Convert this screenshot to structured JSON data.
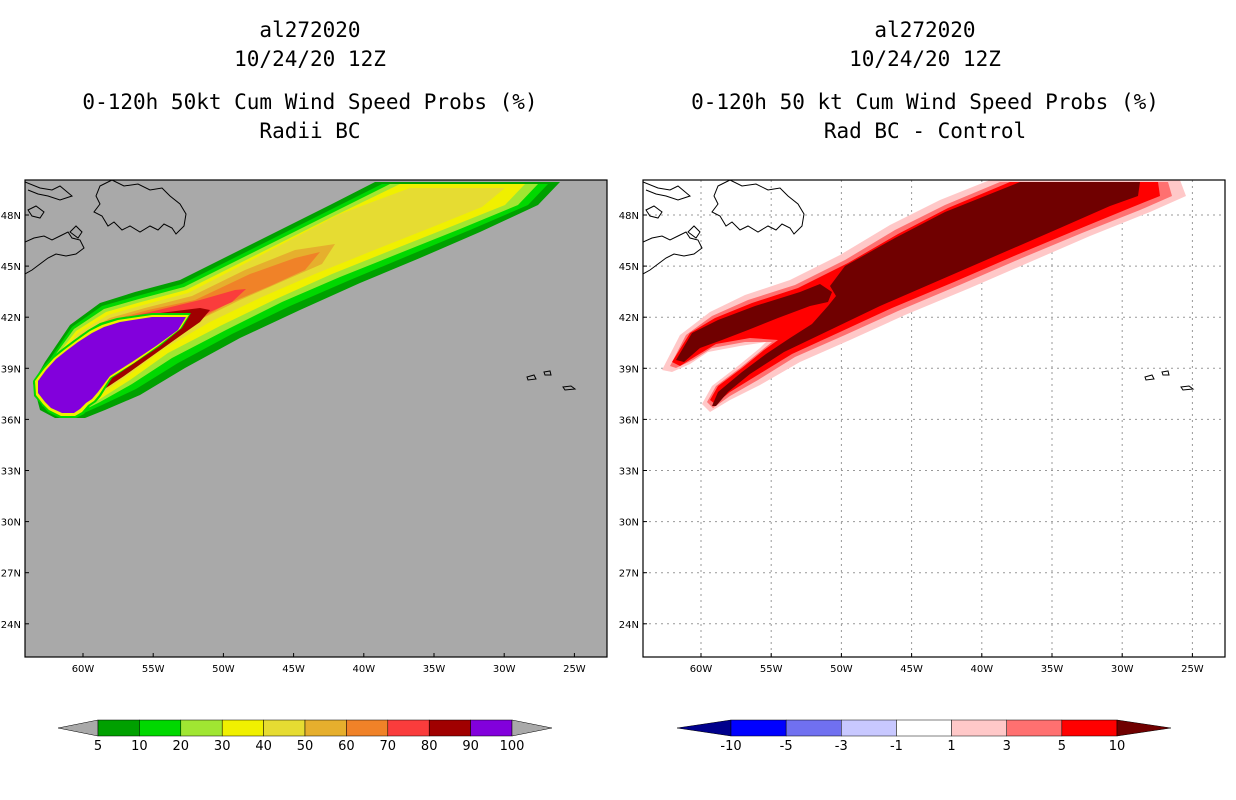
{
  "left_panel": {
    "title_line1": "al272020",
    "title_line2": "10/24/20 12Z",
    "subtitle_line1": "0-120h 50kt Cum Wind Speed Probs (%)",
    "subtitle_line2": "Radii BC",
    "background_color": "#a9a9a9"
  },
  "right_panel": {
    "title_line1": "al272020",
    "title_line2": "10/24/20 12Z",
    "subtitle_line1": "0-120h 50 kt Cum Wind Speed Probs (%)",
    "subtitle_line2": "Rad BC - Control",
    "background_color": "#ffffff"
  },
  "map_axes": {
    "lat_labels": [
      "48N",
      "45N",
      "42N",
      "39N",
      "36N",
      "33N",
      "30N",
      "27N",
      "24N"
    ],
    "lon_labels": [
      "60W",
      "55W",
      "50W",
      "45W",
      "40W",
      "35W",
      "30W",
      "25W"
    ]
  },
  "left_colorbar": {
    "labels": [
      "5",
      "10",
      "20",
      "30",
      "40",
      "50",
      "60",
      "70",
      "80",
      "90",
      "100"
    ],
    "colors": [
      "#a9a9a9",
      "#00a000",
      "#00d800",
      "#a0e632",
      "#f0f000",
      "#e6dc32",
      "#e6af2d",
      "#f08228",
      "#fa3c3c",
      "#a00000",
      "#8200dc",
      "#a9a9a9"
    ]
  },
  "right_colorbar": {
    "labels": [
      "-10",
      "-5",
      "-3",
      "-1",
      "1",
      "3",
      "5",
      "10"
    ],
    "colors": [
      "#00008c",
      "#0000ff",
      "#7070f0",
      "#c8c8ff",
      "#ffffff",
      "#ffc8c8",
      "#ff7070",
      "#ff0000",
      "#700000"
    ]
  }
}
